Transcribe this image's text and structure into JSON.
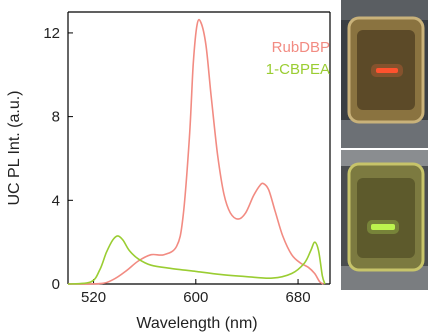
{
  "chart_data": {
    "type": "line",
    "title": "",
    "xlabel": "Wavelength (nm)",
    "ylabel": "UC PL Int. (a.u.)",
    "xlim": [
      500,
      705
    ],
    "ylim": [
      0,
      13
    ],
    "xticks": [
      520,
      600,
      680
    ],
    "yticks": [
      0,
      4,
      8,
      12
    ],
    "grid": false,
    "legend_position": "top-right",
    "series": [
      {
        "name": "RubDBP",
        "color": "#f28b82",
        "points": [
          [
            500,
            0
          ],
          [
            525,
            0.02
          ],
          [
            535,
            0.2
          ],
          [
            545,
            0.6
          ],
          [
            555,
            1.1
          ],
          [
            565,
            1.4
          ],
          [
            575,
            1.4
          ],
          [
            585,
            1.8
          ],
          [
            590,
            3.2
          ],
          [
            595,
            7.0
          ],
          [
            598,
            10.5
          ],
          [
            601,
            12.4
          ],
          [
            604,
            12.5
          ],
          [
            608,
            11.4
          ],
          [
            612,
            9.0
          ],
          [
            617,
            6.2
          ],
          [
            622,
            4.3
          ],
          [
            627,
            3.4
          ],
          [
            633,
            3.1
          ],
          [
            639,
            3.4
          ],
          [
            645,
            4.2
          ],
          [
            650,
            4.7
          ],
          [
            653,
            4.8
          ],
          [
            657,
            4.5
          ],
          [
            662,
            3.5
          ],
          [
            668,
            2.3
          ],
          [
            675,
            1.4
          ],
          [
            682,
            1.0
          ],
          [
            688,
            0.8
          ],
          [
            693,
            0.5
          ],
          [
            697,
            0.1
          ],
          [
            700,
            0
          ]
        ]
      },
      {
        "name": "1-CBPEA",
        "color": "#9acd32",
        "points": [
          [
            500,
            0
          ],
          [
            518,
            0.1
          ],
          [
            525,
            0.7
          ],
          [
            530,
            1.5
          ],
          [
            535,
            2.1
          ],
          [
            539,
            2.3
          ],
          [
            543,
            2.1
          ],
          [
            548,
            1.6
          ],
          [
            555,
            1.2
          ],
          [
            565,
            0.9
          ],
          [
            580,
            0.75
          ],
          [
            600,
            0.6
          ],
          [
            620,
            0.45
          ],
          [
            640,
            0.35
          ],
          [
            660,
            0.28
          ],
          [
            675,
            0.5
          ],
          [
            685,
            1.0
          ],
          [
            690,
            1.6
          ],
          [
            693,
            2.0
          ],
          [
            696,
            1.6
          ],
          [
            699,
            0.4
          ],
          [
            701,
            0
          ]
        ]
      }
    ]
  }
}
